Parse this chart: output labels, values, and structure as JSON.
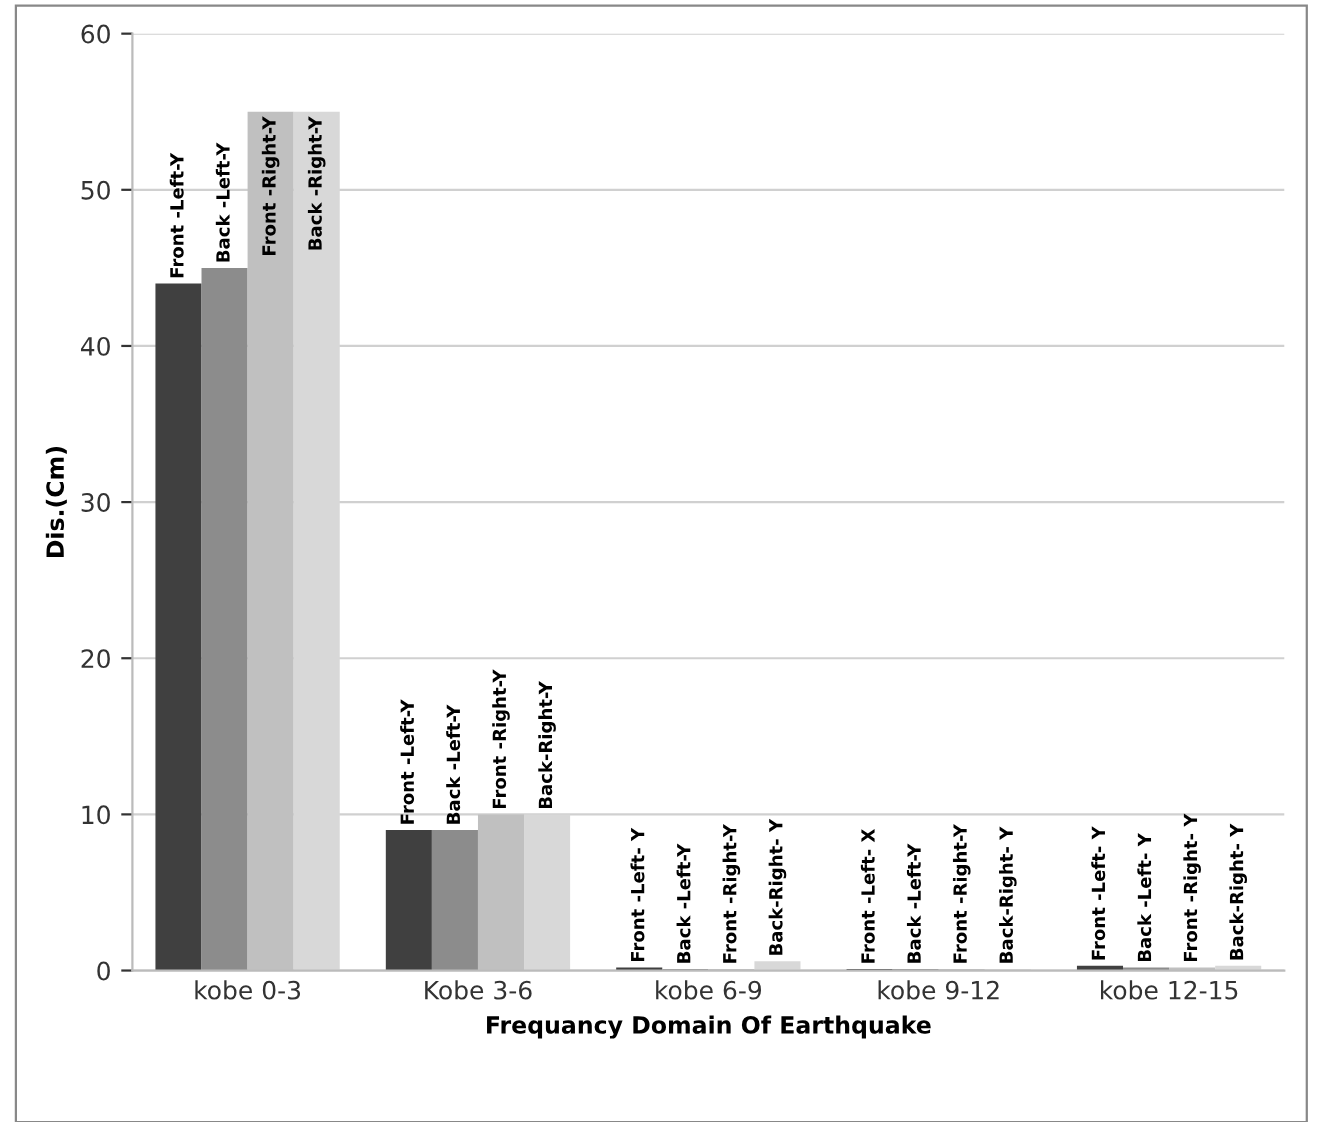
{
  "chart_data": {
    "type": "bar",
    "xlabel": "Frequancy Domain Of Earthquake",
    "ylabel": "Dis.(Cm)",
    "categories": [
      "kobe 0-3",
      "Kobe 3-6",
      "kobe 6-9",
      "kobe 9-12",
      "kobe 12-15"
    ],
    "series": [
      {
        "color": "#404040",
        "values": [
          44,
          9,
          0.2,
          0.1,
          0.3
        ],
        "value_labels": [
          "Front -Left-Y",
          "Front -Left-Y",
          "Front -Left- Y",
          "Front -Left- X",
          "Front -Left- Y"
        ]
      },
      {
        "color": "#8c8c8c",
        "values": [
          45,
          9,
          0.1,
          0.1,
          0.2
        ],
        "value_labels": [
          "Back -Left-Y",
          "Back -Left-Y",
          "Back -Left-Y",
          "Back -Left-Y",
          "Back -Left- Y"
        ]
      },
      {
        "color": "#c0c0c0",
        "values": [
          55,
          10,
          0.1,
          0.1,
          0.2
        ],
        "value_labels": [
          "Front -Right-Y",
          "Front -Right-Y",
          "Front -Right-Y",
          "Front -Right-Y",
          "Front -Right- Y"
        ]
      },
      {
        "color": "#d8d8d8",
        "values": [
          55,
          10,
          0.6,
          0.1,
          0.3
        ],
        "value_labels": [
          "Back -Right-Y",
          "Back-Right-Y",
          "Back-Right- Y",
          "Back-Right- Y",
          "Back-Right- Y"
        ]
      }
    ],
    "ylim": [
      0,
      60
    ],
    "yticks": [
      0,
      10,
      20,
      30,
      40,
      50,
      60
    ],
    "grid": "y",
    "legend": false
  }
}
